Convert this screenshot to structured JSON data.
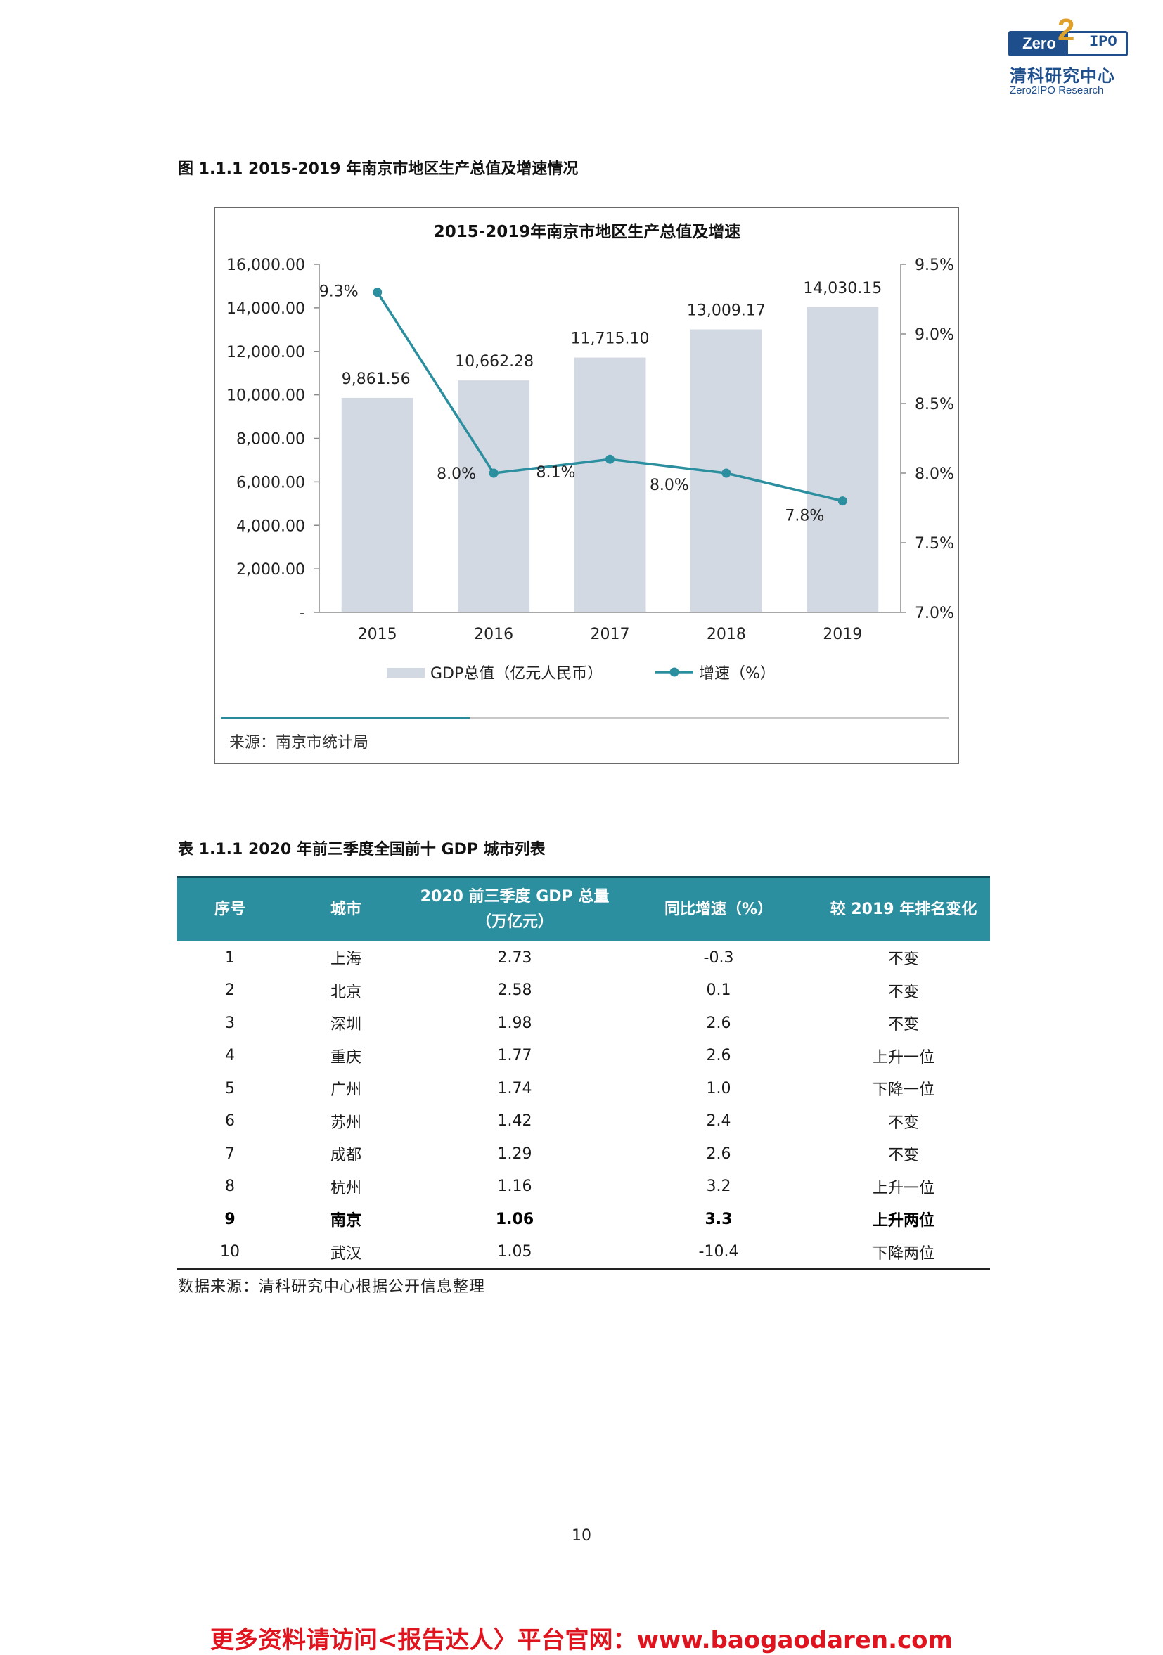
{
  "logo": {
    "mark_left": "Zero",
    "mark_mid": "2",
    "mark_right": "IPO",
    "name_cn": "清科研究中心",
    "name_en": "Zero2IPO Research"
  },
  "figure": {
    "caption": "图 1.1.1 2015-2019 年南京市地区生产总值及增速情况",
    "source": "来源：南京市统计局"
  },
  "chart_data": {
    "type": "bar",
    "title": "2015-2019年南京市地区生产总值及增速",
    "categories": [
      "2015",
      "2016",
      "2017",
      "2018",
      "2019"
    ],
    "series": [
      {
        "name": "GDP总值（亿元人民币）",
        "type": "bar",
        "axis": "left",
        "values": [
          9861.56,
          10662.28,
          11715.1,
          13009.17,
          14030.15
        ],
        "labels": [
          "9,861.56",
          "10,662.28",
          "11,715.10",
          "13,009.17",
          "14,030.15"
        ],
        "color": "#d3d9e3"
      },
      {
        "name": "增速（%）",
        "type": "line",
        "axis": "right",
        "values": [
          9.3,
          8.0,
          8.1,
          8.0,
          7.8
        ],
        "labels": [
          "9.3%",
          "8.0%",
          "8.1%",
          "8.0%",
          "7.8%"
        ],
        "color": "#2b8f9f"
      }
    ],
    "ylim_left": [
      0,
      16000
    ],
    "yticks_left": [
      "-",
      "2,000.00",
      "4,000.00",
      "6,000.00",
      "8,000.00",
      "10,000.00",
      "12,000.00",
      "14,000.00",
      "16,000.00"
    ],
    "ylim_right": [
      7.0,
      9.5
    ],
    "yticks_right": [
      "7.0%",
      "7.5%",
      "8.0%",
      "8.5%",
      "9.0%",
      "9.5%"
    ],
    "grid": false,
    "legend_position": "bottom"
  },
  "table": {
    "caption": "表 1.1.1 2020 年前三季度全国前十 GDP 城市列表",
    "headers": {
      "rank": "序号",
      "city": "城市",
      "gdp_line1": "2020 前三季度 GDP 总量",
      "gdp_line2": "（万亿元）",
      "growth": "同比增速（%）",
      "change": "较 2019 年排名变化"
    },
    "rows": [
      {
        "rank": "1",
        "city": "上海",
        "gdp": "2.73",
        "growth": "-0.3",
        "change": "不变"
      },
      {
        "rank": "2",
        "city": "北京",
        "gdp": "2.58",
        "growth": "0.1",
        "change": "不变"
      },
      {
        "rank": "3",
        "city": "深圳",
        "gdp": "1.98",
        "growth": "2.6",
        "change": "不变"
      },
      {
        "rank": "4",
        "city": "重庆",
        "gdp": "1.77",
        "growth": "2.6",
        "change": "上升一位"
      },
      {
        "rank": "5",
        "city": "广州",
        "gdp": "1.74",
        "growth": "1.0",
        "change": "下降一位"
      },
      {
        "rank": "6",
        "city": "苏州",
        "gdp": "1.42",
        "growth": "2.4",
        "change": "不变"
      },
      {
        "rank": "7",
        "city": "成都",
        "gdp": "1.29",
        "growth": "2.6",
        "change": "不变"
      },
      {
        "rank": "8",
        "city": "杭州",
        "gdp": "1.16",
        "growth": "3.2",
        "change": "上升一位"
      },
      {
        "rank": "9",
        "city": "南京",
        "gdp": "1.06",
        "growth": "3.3",
        "change": "上升两位"
      },
      {
        "rank": "10",
        "city": "武汉",
        "gdp": "1.05",
        "growth": "-10.4",
        "change": "下降两位"
      }
    ],
    "source": "数据来源：清科研究中心根据公开信息整理"
  },
  "page_number": "10",
  "footer_promo": "更多资料请访问<报告达人〉平台官网：www.baogaodaren.com"
}
